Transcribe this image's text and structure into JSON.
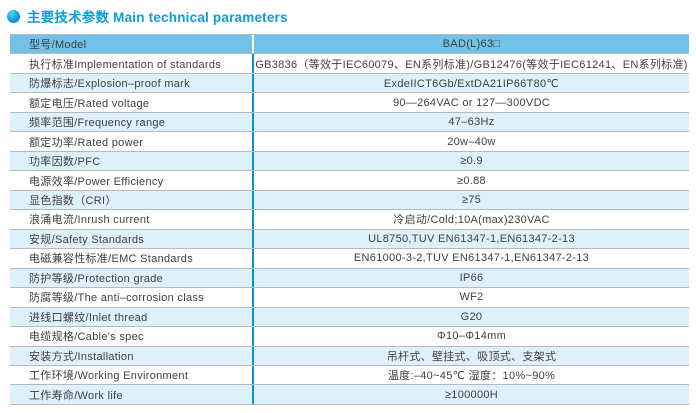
{
  "header": {
    "icon": "blue-sphere-bullet-icon",
    "title": "主要技术参数 Main technical parameters",
    "title_color": "#0f9cd8"
  },
  "colors": {
    "header_row_bg": "#71c1e8",
    "alt_row_bg": "#def1fb",
    "plain_row_bg": "#ffffff",
    "column_divider": "#0d8fd0",
    "row_separator": "#b4bbc0",
    "text": "#3f3f3f"
  },
  "table": {
    "rows": [
      {
        "label": "型号/Model",
        "value": "BAD(L)63□"
      },
      {
        "label": "执行标准Implementation of standards",
        "value": "GB3836（等效于IEC60079、EN系列标准)/GB12476(等效于IEC61241、EN系列标准)"
      },
      {
        "label": "防爆标志/Explosion–proof mark",
        "value": "ExdeIICT6Gb/ExtDA21IP66T80℃"
      },
      {
        "label": "额定电压/Rated voltage",
        "value": "90—264VAC or 127—300VDC"
      },
      {
        "label": "频率范围/Frequency range",
        "value": "47–63Hz"
      },
      {
        "label": "额定功率/Rated power",
        "value": "20w–40w"
      },
      {
        "label": "功率因数/PFC",
        "value": "≥0.9"
      },
      {
        "label": "电源效率/Power Efficiency",
        "value": "≥0.88"
      },
      {
        "label": "显色指数（CRI）",
        "value": "≥75"
      },
      {
        "label": "浪涌电流/Inrush current",
        "value": "冷启动/Cold;10A(max)230VAC"
      },
      {
        "label": "安规/Safety Standards",
        "value": "UL8750,TUV EN61347-1,EN61347-2-13"
      },
      {
        "label": "电磁兼容性标准/EMC Standards",
        "value": "EN61000-3-2,TUV EN61347-1,EN61347-2-13"
      },
      {
        "label": "防护等级/Protection grade",
        "value": "IP66"
      },
      {
        "label": "防腐等级/The anti–corrosion class",
        "value": "WF2"
      },
      {
        "label": "进线口螺纹/Inlet thread",
        "value": "G20"
      },
      {
        "label": "电缆规格/Cable's spec",
        "value": "Φ10–Φ14mm"
      },
      {
        "label": "安装方式/Installation",
        "value": "吊杆式、壁挂式、吸顶式、支架式"
      },
      {
        "label": "工作环境/Working Environment",
        "value": "温度:–40~45℃ 湿度：10%~90%"
      },
      {
        "label": "工作寿命/Work life",
        "value": "≥100000H"
      }
    ]
  }
}
